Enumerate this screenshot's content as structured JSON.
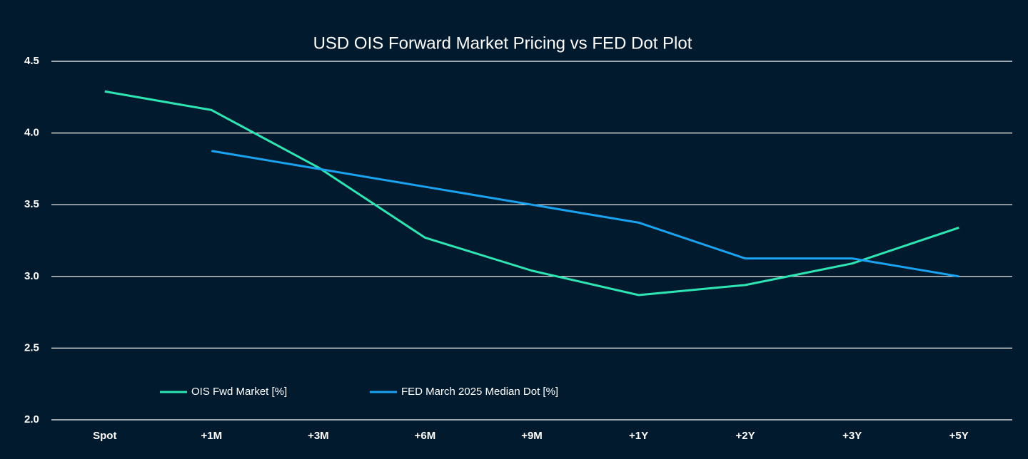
{
  "chart_data": {
    "type": "line",
    "title": "USD OIS Forward Market Pricing vs FED Dot Plot",
    "categories": [
      "Spot",
      "+1M",
      "+3M",
      "+6M",
      "+9M",
      "+1Y",
      "+2Y",
      "+3Y",
      "+5Y"
    ],
    "series": [
      {
        "name": "OIS Fwd Market [%]",
        "color": "#2ee6b4",
        "values": [
          4.29,
          4.16,
          3.76,
          3.27,
          3.04,
          2.87,
          2.94,
          3.09,
          3.34
        ]
      },
      {
        "name": "FED March 2025 Median Dot [%]",
        "color": "#1aa3f0",
        "values": [
          null,
          3.875,
          3.75,
          3.625,
          3.5,
          3.375,
          3.125,
          3.125,
          3.0
        ]
      }
    ],
    "ylim": [
      2.0,
      4.5
    ],
    "yticks": [
      {
        "value": 2.0,
        "label": "2.0"
      },
      2.5,
      {
        "value": 3.0,
        "label": "3.0"
      },
      3.5,
      {
        "value": 4.0,
        "label": "4.0"
      },
      4.5
    ],
    "grid": true,
    "legend": "bottom"
  }
}
